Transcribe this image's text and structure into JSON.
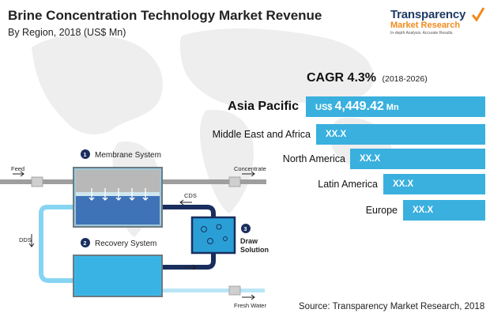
{
  "title": "Brine Concentration Technology Market Revenue",
  "subtitle": "By Region, 2018 (US$ Mn)",
  "logo": {
    "line1": "Transparency",
    "line2": "Market Research",
    "line3": "In-depth Analysis. Accurate Results."
  },
  "cagr": {
    "label": "CAGR 4.3%",
    "period": "(2018-2026)"
  },
  "chart_data": {
    "type": "bar",
    "orientation": "horizontal",
    "categories": [
      "Asia Pacific",
      "Middle East and Africa",
      "North America",
      "Latin America",
      "Europe"
    ],
    "value_labels": [
      "4,449.42",
      "XX.X",
      "XX.X",
      "XX.X",
      "XX.X"
    ],
    "values": [
      4449.42,
      null,
      null,
      null,
      null
    ],
    "value_prefix": "US$",
    "value_suffix": "Mn",
    "bar_color": "#3ab0de"
  },
  "diagram": {
    "membrane_step": "1",
    "membrane_label": "Membrane System",
    "recovery_step": "2",
    "recovery_label": "Recovery System",
    "draw_step": "3",
    "draw_label_1": "Draw",
    "draw_label_2": "Solution",
    "feed": "Feed",
    "concentrate": "Concentrate",
    "cds": "CDS",
    "dds": "DDS",
    "fresh_water": "Fresh Water"
  },
  "source": "Source: Transparency Market Research, 2018"
}
